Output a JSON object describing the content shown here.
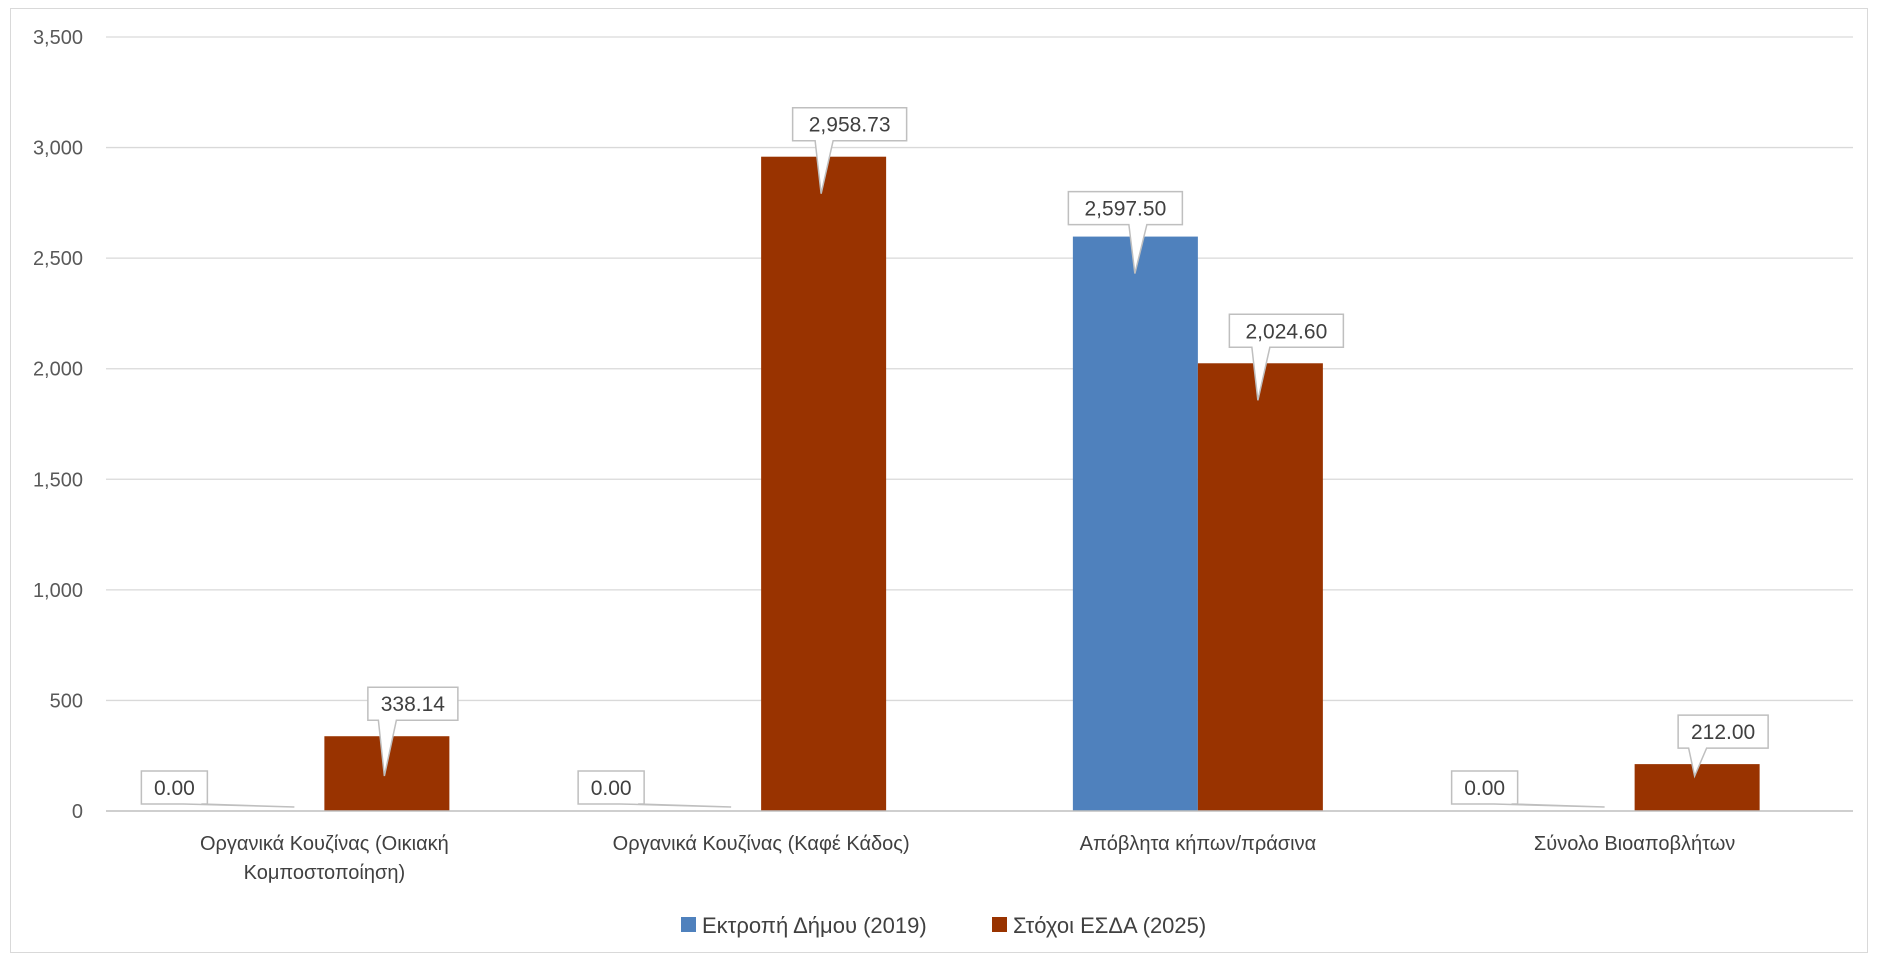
{
  "chart_data": {
    "type": "bar",
    "categories": [
      [
        "Οργανικά Κουζίνας (Οικιακή",
        "Κομποστοποίηση)"
      ],
      [
        "Οργανικά Κουζίνας (Καφέ Κάδος)"
      ],
      [
        "Απόβλητα κήπων/πράσινα"
      ],
      [
        "Σύνολο Βιοαποβλήτων"
      ]
    ],
    "series": [
      {
        "name": "Εκτροπή Δήμου (2019)",
        "color": "#4f81bd",
        "values": [
          0,
          0,
          2597.5,
          0
        ],
        "labels": [
          "0.00",
          "0.00",
          "2,597.50",
          "0.00"
        ]
      },
      {
        "name": "Στόχοι ΕΣΔΑ (2025)",
        "color": "#993300",
        "values": [
          338.14,
          2958.73,
          2024.6,
          212
        ],
        "labels": [
          "338.14",
          "2,958.73",
          "2,024.60",
          "212.00"
        ]
      }
    ],
    "yticks": [
      "0",
      "500",
      "1,000",
      "1,500",
      "2,000",
      "2,500",
      "3,000",
      "3,500"
    ],
    "ylim": [
      0,
      3500
    ],
    "grid": true,
    "legend_position": "bottom",
    "title": "",
    "xlabel": "",
    "ylabel": ""
  }
}
